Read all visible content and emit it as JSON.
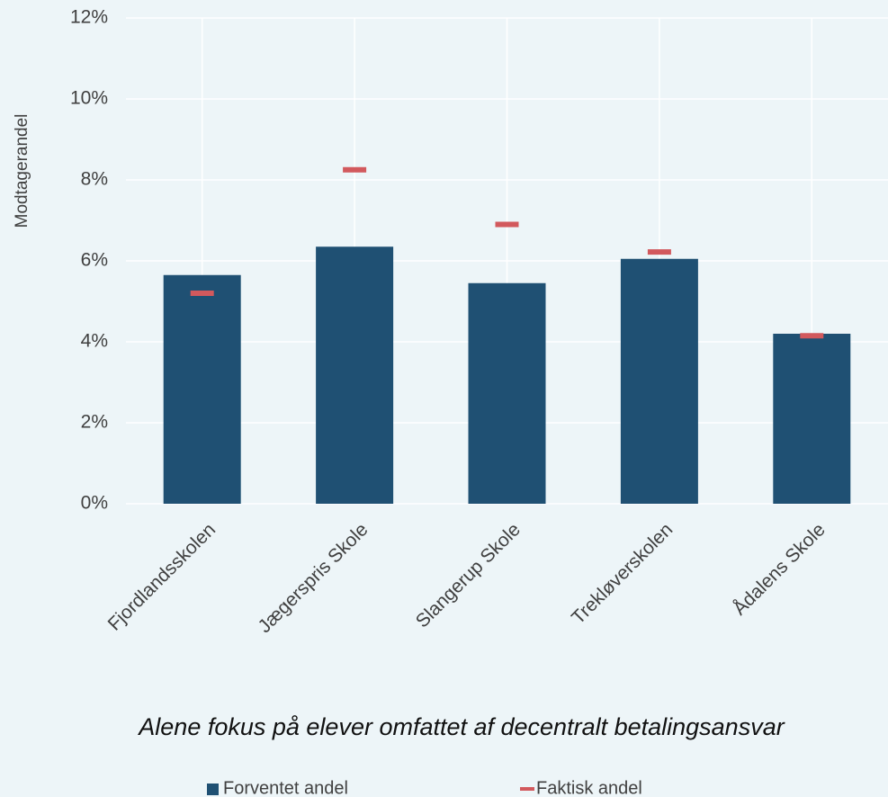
{
  "chart_data": {
    "type": "bar",
    "y_label": "Modtagerandel",
    "subtitle": "Alene fokus på elever omfattet af decentralt betalingsansvar",
    "categories": [
      "Fjordlandsskolen",
      "Jægerspris Skole",
      "Slangerup Skole",
      "Trekløverskolen",
      "Ådalens Skole"
    ],
    "series": [
      {
        "name": "Forventet andel",
        "color": "#1f5073",
        "mark": "bar",
        "values": [
          5.65,
          6.35,
          5.45,
          6.05,
          4.2
        ]
      },
      {
        "name": "Faktisk andel",
        "color": "#d2595d",
        "mark": "dash",
        "values": [
          5.2,
          8.25,
          6.9,
          6.22,
          4.15
        ]
      }
    ],
    "ylim": [
      0,
      12
    ],
    "yticks": [
      {
        "value": 0,
        "label": "0%"
      },
      {
        "value": 2,
        "label": "2%"
      },
      {
        "value": 4,
        "label": "4%"
      },
      {
        "value": 6,
        "label": "6%"
      },
      {
        "value": 8,
        "label": "8%"
      },
      {
        "value": 10,
        "label": "10%"
      },
      {
        "value": 12,
        "label": "12%"
      }
    ],
    "grid": true
  }
}
